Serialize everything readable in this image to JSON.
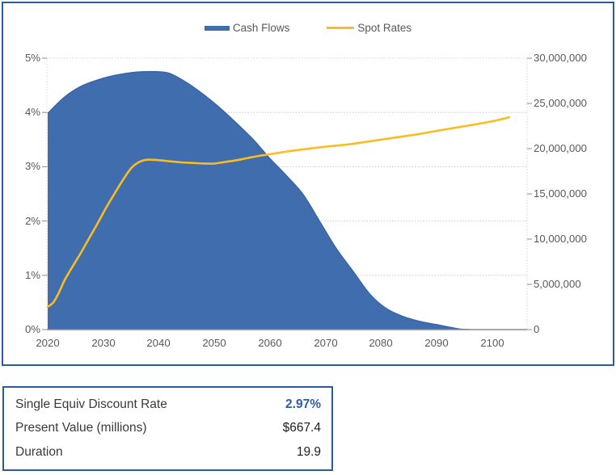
{
  "chart_data": {
    "type": "area-line-combo",
    "title": "",
    "legend_position": "top",
    "gridlines": true,
    "x_axis": {
      "tick_labels": [
        "2020",
        "2030",
        "2040",
        "2050",
        "2060",
        "2070",
        "2080",
        "2090",
        "2100"
      ],
      "range": [
        2020,
        2106
      ]
    },
    "y_left_axis": {
      "units": "percent",
      "tick_labels": [
        "5%",
        "4%",
        "3%",
        "2%",
        "1%",
        "0%"
      ],
      "range": [
        0,
        5
      ]
    },
    "y_right_axis": {
      "tick_labels": [
        "30,000,000",
        "25,000,000",
        "20,000,000",
        "15,000,000",
        "10,000,000",
        "5,000,000",
        "0"
      ],
      "range": [
        0,
        30000000
      ]
    },
    "series": [
      {
        "name": "Cash Flows",
        "type": "area",
        "axis": "right",
        "color": "#3F6DAD",
        "edge_color": "#3A63A3",
        "points": [
          [
            2020,
            23900000
          ],
          [
            2023,
            25700000
          ],
          [
            2026,
            26900000
          ],
          [
            2029,
            27600000
          ],
          [
            2032,
            28100000
          ],
          [
            2035,
            28400000
          ],
          [
            2037,
            28500000
          ],
          [
            2040,
            28500000
          ],
          [
            2042,
            28300000
          ],
          [
            2045,
            27300000
          ],
          [
            2048,
            26000000
          ],
          [
            2051,
            24500000
          ],
          [
            2054,
            22800000
          ],
          [
            2057,
            21000000
          ],
          [
            2060,
            18900000
          ],
          [
            2063,
            17000000
          ],
          [
            2066,
            14900000
          ],
          [
            2069,
            11900000
          ],
          [
            2072,
            8900000
          ],
          [
            2075,
            6400000
          ],
          [
            2078,
            3900000
          ],
          [
            2081,
            2300000
          ],
          [
            2084,
            1450000
          ],
          [
            2087,
            900000
          ],
          [
            2090,
            550000
          ],
          [
            2092,
            300000
          ],
          [
            2094,
            80000
          ],
          [
            2096,
            0
          ]
        ]
      },
      {
        "name": "Spot Rates",
        "type": "line",
        "axis": "left",
        "color": "#FBBC20",
        "points": [
          [
            2020,
            0.42
          ],
          [
            2021,
            0.5
          ],
          [
            2022,
            0.68
          ],
          [
            2023,
            0.9
          ],
          [
            2024,
            1.08
          ],
          [
            2025,
            1.25
          ],
          [
            2026,
            1.42
          ],
          [
            2027,
            1.6
          ],
          [
            2028,
            1.78
          ],
          [
            2029,
            1.96
          ],
          [
            2030,
            2.15
          ],
          [
            2031,
            2.33
          ],
          [
            2032,
            2.5
          ],
          [
            2033,
            2.67
          ],
          [
            2034,
            2.83
          ],
          [
            2035,
            2.97
          ],
          [
            2036,
            3.06
          ],
          [
            2037,
            3.11
          ],
          [
            2038,
            3.13
          ],
          [
            2040,
            3.12
          ],
          [
            2042,
            3.1
          ],
          [
            2044,
            3.08
          ],
          [
            2046,
            3.07
          ],
          [
            2048,
            3.06
          ],
          [
            2050,
            3.06
          ],
          [
            2052,
            3.09
          ],
          [
            2054,
            3.12
          ],
          [
            2056,
            3.16
          ],
          [
            2058,
            3.2
          ],
          [
            2060,
            3.23
          ],
          [
            2063,
            3.28
          ],
          [
            2066,
            3.32
          ],
          [
            2070,
            3.37
          ],
          [
            2074,
            3.41
          ],
          [
            2078,
            3.47
          ],
          [
            2082,
            3.53
          ],
          [
            2086,
            3.59
          ],
          [
            2090,
            3.66
          ],
          [
            2094,
            3.73
          ],
          [
            2098,
            3.8
          ],
          [
            2101,
            3.86
          ],
          [
            2103,
            3.91
          ]
        ]
      }
    ]
  },
  "summary_table": {
    "rows": [
      {
        "label": "Single Equiv Discount Rate",
        "value": "2.97%",
        "highlighted": true
      },
      {
        "label": "Present Value (millions)",
        "value": "$667.4",
        "highlighted": false
      },
      {
        "label": "Duration",
        "value": "19.9",
        "highlighted": false
      }
    ]
  },
  "colors": {
    "frame_border": "#2D5B9D",
    "highlight_value": "#2E5CA8",
    "axis_text": "#595959",
    "gridline": "#CACACA",
    "axis_line": "#8C8C8C"
  }
}
